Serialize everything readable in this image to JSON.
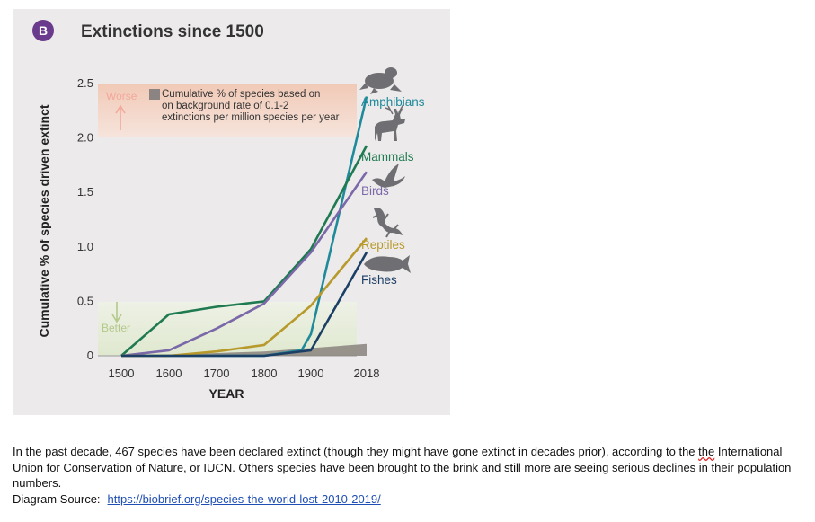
{
  "figure": {
    "badge": "B",
    "title": "Extinctions since 1500"
  },
  "chart_data": {
    "type": "line",
    "title": "Extinctions since 1500",
    "xlabel": "YEAR",
    "ylabel": "Cumulative % of species driven extinct",
    "x_ticks": [
      "1500",
      "1600",
      "1700",
      "1800",
      "1900",
      "2018"
    ],
    "y_ticks": [
      "0",
      "0.5",
      "1.0",
      "1.5",
      "2.0",
      "2.5"
    ],
    "ylim": [
      0,
      2.5
    ],
    "series": [
      {
        "name": "Amphibians",
        "color": "#1e8a9a",
        "x": [
          1500,
          1600,
          1700,
          1800,
          1880,
          1900,
          2018
        ],
        "y": [
          0,
          0,
          0,
          0,
          0.05,
          0.2,
          2.38
        ]
      },
      {
        "name": "Mammals",
        "color": "#1f7a52",
        "x": [
          1500,
          1600,
          1700,
          1800,
          1900,
          2018
        ],
        "y": [
          0,
          0.38,
          0.45,
          0.5,
          0.98,
          1.93
        ]
      },
      {
        "name": "Birds",
        "color": "#7a68a8",
        "x": [
          1500,
          1600,
          1700,
          1800,
          1900,
          2018
        ],
        "y": [
          0,
          0.05,
          0.25,
          0.48,
          0.95,
          1.69
        ]
      },
      {
        "name": "Reptiles",
        "color": "#b89a2c",
        "x": [
          1500,
          1600,
          1700,
          1800,
          1900,
          2018
        ],
        "y": [
          0,
          0,
          0.04,
          0.1,
          0.46,
          1.08
        ]
      },
      {
        "name": "Fishes",
        "color": "#1c3f66",
        "x": [
          1500,
          1600,
          1700,
          1800,
          1900,
          2018
        ],
        "y": [
          0,
          0,
          0,
          0,
          0.05,
          0.95
        ]
      }
    ],
    "background_band": {
      "label": "Cumulative % of species based on\non background rate of 0.1-2\nextinctions per million species per year",
      "x": [
        1500,
        1600,
        1700,
        1800,
        1900,
        2018
      ],
      "y": [
        0,
        0.01,
        0.025,
        0.04,
        0.07,
        0.11
      ]
    },
    "annotations": {
      "worse": "Worse",
      "better": "Better"
    }
  },
  "caption": {
    "text_before": "In the past decade, 467 species have been declared extinct (though they might have gone extinct in decades prior), according to the ",
    "squiggle_word": "the",
    "text_after": " International Union for Conservation of Nature, or IUCN. Others species have been brought to the brink and still more are seeing serious declines in their population numbers.",
    "source_label": "Diagram Source:",
    "source_link": "https://biobrief.org/species-the-world-lost-2010-2019/"
  }
}
